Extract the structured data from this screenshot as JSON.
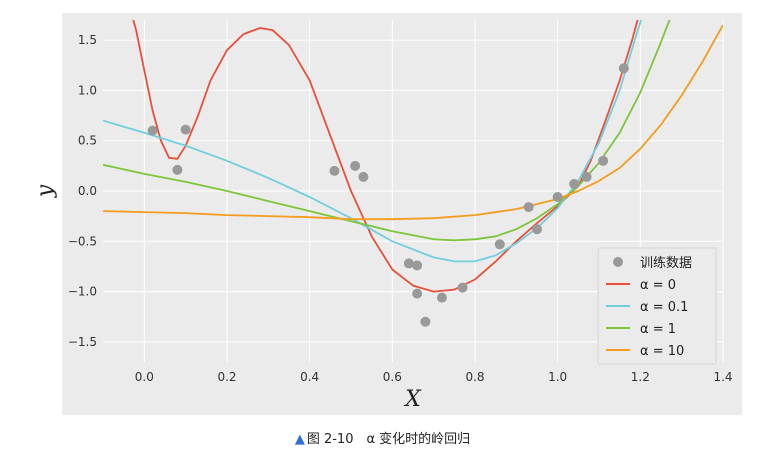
{
  "caption": {
    "marker": "▲",
    "text": "图 2-10　α 变化时的岭回归"
  },
  "chart_data": {
    "type": "line",
    "title": "",
    "xlabel": "X",
    "ylabel": "y",
    "xlim": [
      -0.1,
      1.4
    ],
    "ylim": [
      -1.7,
      1.7
    ],
    "xticks": [
      0.0,
      0.2,
      0.4,
      0.6,
      0.8,
      1.0,
      1.2,
      1.4
    ],
    "xtick_labels": [
      "0.0",
      "0.2",
      "0.4",
      "0.6",
      "0.8",
      "1.0",
      "1.2",
      "1.4"
    ],
    "yticks": [
      -1.5,
      -1.0,
      -0.5,
      0.0,
      0.5,
      1.0,
      1.5
    ],
    "ytick_labels": [
      "−1.5",
      "−1.0",
      "−0.5",
      "0.0",
      "0.5",
      "1.0",
      "1.5"
    ],
    "grid": true,
    "background": "#ebebeb",
    "legend_position": "lower-right",
    "scatter": {
      "name": "训练数据",
      "color": "#999999",
      "points": [
        [
          0.02,
          0.6
        ],
        [
          0.08,
          0.21
        ],
        [
          0.1,
          0.61
        ],
        [
          0.46,
          0.2
        ],
        [
          0.51,
          0.25
        ],
        [
          0.53,
          0.14
        ],
        [
          0.64,
          -0.72
        ],
        [
          0.66,
          -0.74
        ],
        [
          0.66,
          -1.02
        ],
        [
          0.68,
          -1.3
        ],
        [
          0.72,
          -1.06
        ],
        [
          0.77,
          -0.96
        ],
        [
          0.86,
          -0.53
        ],
        [
          0.93,
          -0.16
        ],
        [
          0.95,
          -0.38
        ],
        [
          1.0,
          -0.06
        ],
        [
          1.04,
          0.07
        ],
        [
          1.07,
          0.14
        ],
        [
          1.11,
          0.3
        ],
        [
          1.16,
          1.22
        ]
      ]
    },
    "series": [
      {
        "name": "α = 0",
        "color": "#e8503a",
        "points": [
          [
            -0.03,
            1.75
          ],
          [
            -0.02,
            1.6
          ],
          [
            0.0,
            1.2
          ],
          [
            0.02,
            0.8
          ],
          [
            0.04,
            0.5
          ],
          [
            0.06,
            0.33
          ],
          [
            0.08,
            0.32
          ],
          [
            0.1,
            0.45
          ],
          [
            0.13,
            0.75
          ],
          [
            0.16,
            1.1
          ],
          [
            0.2,
            1.4
          ],
          [
            0.24,
            1.56
          ],
          [
            0.28,
            1.62
          ],
          [
            0.31,
            1.6
          ],
          [
            0.35,
            1.45
          ],
          [
            0.4,
            1.1
          ],
          [
            0.45,
            0.55
          ],
          [
            0.5,
            0.0
          ],
          [
            0.55,
            -0.45
          ],
          [
            0.6,
            -0.78
          ],
          [
            0.65,
            -0.94
          ],
          [
            0.7,
            -1.0
          ],
          [
            0.75,
            -0.98
          ],
          [
            0.8,
            -0.88
          ],
          [
            0.85,
            -0.7
          ],
          [
            0.9,
            -0.5
          ],
          [
            0.95,
            -0.32
          ],
          [
            1.0,
            -0.15
          ],
          [
            1.05,
            0.05
          ],
          [
            1.08,
            0.3
          ],
          [
            1.12,
            0.75
          ],
          [
            1.15,
            1.1
          ],
          [
            1.18,
            1.5
          ],
          [
            1.2,
            1.8
          ]
        ]
      },
      {
        "name": "α = 0.1",
        "color": "#6fcfdf",
        "points": [
          [
            -0.1,
            0.7
          ],
          [
            0.0,
            0.58
          ],
          [
            0.1,
            0.45
          ],
          [
            0.2,
            0.3
          ],
          [
            0.3,
            0.13
          ],
          [
            0.4,
            -0.06
          ],
          [
            0.5,
            -0.27
          ],
          [
            0.6,
            -0.5
          ],
          [
            0.7,
            -0.66
          ],
          [
            0.75,
            -0.7
          ],
          [
            0.8,
            -0.7
          ],
          [
            0.85,
            -0.64
          ],
          [
            0.9,
            -0.52
          ],
          [
            0.95,
            -0.37
          ],
          [
            1.0,
            -0.17
          ],
          [
            1.05,
            0.1
          ],
          [
            1.1,
            0.48
          ],
          [
            1.15,
            1.0
          ],
          [
            1.19,
            1.55
          ],
          [
            1.21,
            1.8
          ]
        ]
      },
      {
        "name": "α = 1",
        "color": "#7cc63a",
        "points": [
          [
            -0.1,
            0.26
          ],
          [
            0.0,
            0.17
          ],
          [
            0.1,
            0.09
          ],
          [
            0.2,
            0.0
          ],
          [
            0.3,
            -0.1
          ],
          [
            0.4,
            -0.2
          ],
          [
            0.5,
            -0.3
          ],
          [
            0.6,
            -0.4
          ],
          [
            0.7,
            -0.48
          ],
          [
            0.75,
            -0.49
          ],
          [
            0.8,
            -0.48
          ],
          [
            0.85,
            -0.45
          ],
          [
            0.9,
            -0.38
          ],
          [
            0.95,
            -0.27
          ],
          [
            1.0,
            -0.13
          ],
          [
            1.05,
            0.05
          ],
          [
            1.1,
            0.28
          ],
          [
            1.15,
            0.58
          ],
          [
            1.2,
            0.98
          ],
          [
            1.25,
            1.48
          ],
          [
            1.28,
            1.8
          ]
        ]
      },
      {
        "name": "α = 10",
        "color": "#f39c1d",
        "points": [
          [
            -0.1,
            -0.2
          ],
          [
            0.0,
            -0.21
          ],
          [
            0.1,
            -0.22
          ],
          [
            0.2,
            -0.24
          ],
          [
            0.3,
            -0.25
          ],
          [
            0.4,
            -0.26
          ],
          [
            0.5,
            -0.28
          ],
          [
            0.6,
            -0.28
          ],
          [
            0.7,
            -0.27
          ],
          [
            0.8,
            -0.24
          ],
          [
            0.9,
            -0.18
          ],
          [
            1.0,
            -0.08
          ],
          [
            1.05,
            0.0
          ],
          [
            1.1,
            0.1
          ],
          [
            1.15,
            0.23
          ],
          [
            1.2,
            0.42
          ],
          [
            1.25,
            0.66
          ],
          [
            1.3,
            0.95
          ],
          [
            1.35,
            1.28
          ],
          [
            1.4,
            1.65
          ]
        ]
      }
    ]
  }
}
